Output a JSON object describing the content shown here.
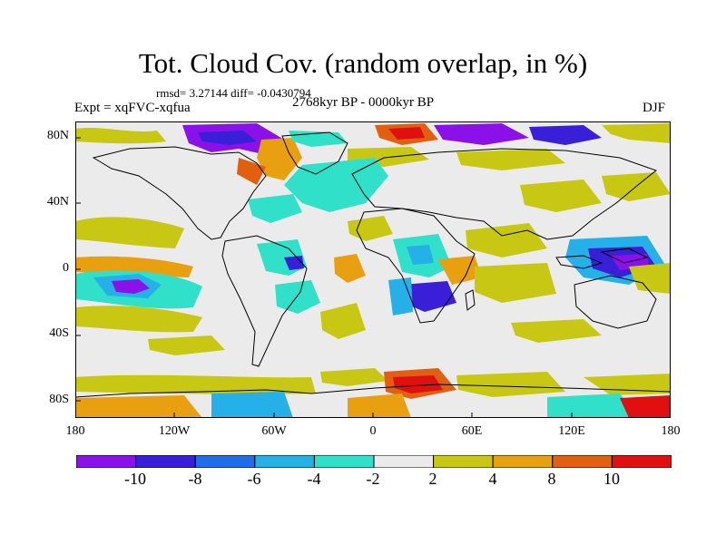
{
  "header": {
    "title": "Tot. Cloud Cov. (random overlap, in %)",
    "stats": "rmsd= 3.27144  diff= -0.0430794",
    "experiment": "Expt = xqFVC-xqfua",
    "period": "2768kyr BP - 0000kyr BP",
    "season": "DJF"
  },
  "axes": {
    "y_ticks": [
      "80N",
      "40N",
      "0",
      "40S",
      "80S"
    ],
    "x_ticks": [
      "180",
      "120W",
      "60W",
      "0",
      "60E",
      "120E",
      "180"
    ]
  },
  "colorbar": {
    "labels": [
      "-10",
      "-8",
      "-6",
      "-4",
      "-2",
      "2",
      "4",
      "8",
      "10"
    ],
    "colors": [
      "#8a12e8",
      "#3a1fd8",
      "#1f6ee8",
      "#25b0e8",
      "#30e0c8",
      "#ebebeb",
      "#c8c814",
      "#e8a010",
      "#e06010",
      "#e01010"
    ]
  },
  "colors": {
    "background": "#ebebeb",
    "coast": "#000000"
  }
}
